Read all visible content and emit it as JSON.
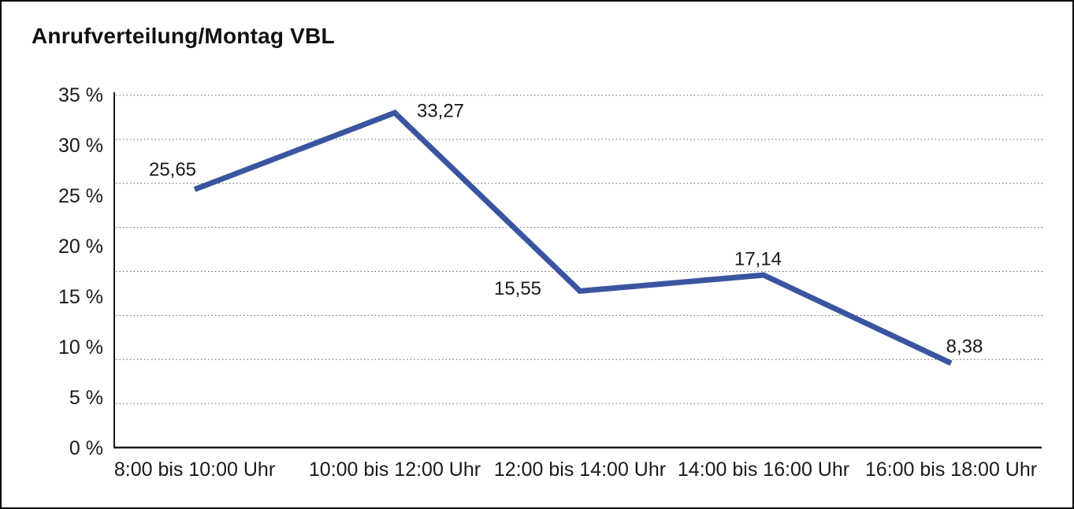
{
  "chart_data": {
    "type": "line",
    "title": "Anrufverteilung/Montag VBL",
    "categories": [
      "8:00 bis 10:00 Uhr",
      "10:00 bis 12:00 Uhr",
      "12:00 bis 14:00 Uhr",
      "14:00 bis 16:00 Uhr",
      "16:00 bis 18:00 Uhr"
    ],
    "values": [
      25.65,
      33.27,
      15.55,
      17.14,
      8.38
    ],
    "value_labels": [
      "25,65",
      "33,27",
      "15,55",
      "17,14",
      "8,38"
    ],
    "y_tick_labels": [
      "35 %",
      "30 %",
      "25 %",
      "20 %",
      "15 %",
      "10 %",
      "5 %",
      "0 %"
    ],
    "ylim": [
      0,
      35
    ],
    "xlabel": "",
    "ylabel": "",
    "legend": "none",
    "grid": "horizontal-dotted",
    "colors": {
      "line": "#3A55A0",
      "axis": "#1A1A1A",
      "gridline": "#666666",
      "text": "#1A1A1A"
    }
  }
}
